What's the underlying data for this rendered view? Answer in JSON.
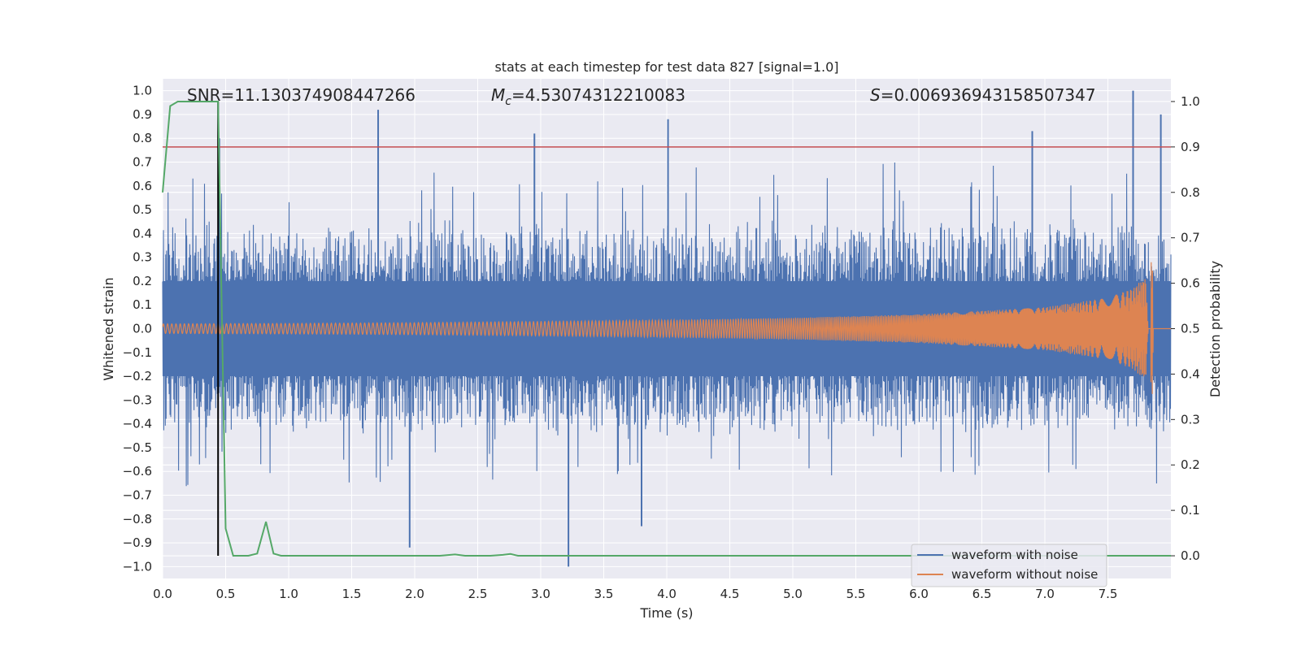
{
  "chart_data": {
    "type": "line",
    "title": "stats at each timestep for test data 827 [signal=1.0]",
    "xlabel": "Time (s)",
    "ylabel_left": "Whitened strain",
    "ylabel_right": "Detection probability",
    "xlim": [
      0.0,
      8.0
    ],
    "ylim_left": [
      -1.05,
      1.05
    ],
    "ylim_right": [
      -0.05,
      1.05
    ],
    "x_ticks": [
      "0.0",
      "0.5",
      "1.0",
      "1.5",
      "2.0",
      "2.5",
      "3.0",
      "3.5",
      "4.0",
      "4.5",
      "5.0",
      "5.5",
      "6.0",
      "6.5",
      "7.0",
      "7.5"
    ],
    "y_ticks_left": [
      "1.0",
      "0.9",
      "0.8",
      "0.7",
      "0.6",
      "0.5",
      "0.4",
      "0.3",
      "0.2",
      "0.1",
      "0.0",
      "−0.1",
      "−0.2",
      "−0.3",
      "−0.4",
      "−0.5",
      "−0.6",
      "−0.7",
      "−0.8",
      "−0.9",
      "−1.0"
    ],
    "y_ticks_right": [
      "1.0",
      "0.9",
      "0.8",
      "0.7",
      "0.6",
      "0.5",
      "0.4",
      "0.3",
      "0.2",
      "0.1",
      "0.0"
    ],
    "annotations": {
      "snr": "SNR=11.130374908447266",
      "mc_symbol": "M",
      "mc_sub": "c",
      "mc_value": "=4.53074312210083",
      "s_symbol": "S",
      "s_value": "=0.006936943158507347"
    },
    "threshold": {
      "axis": "right",
      "value": 0.9,
      "color": "#c44e52"
    },
    "vertical_marker": {
      "x": 0.44,
      "color": "#000000"
    },
    "series": [
      {
        "name": "waveform with noise",
        "axis": "left",
        "color": "#4c72b0",
        "typical_amplitude": 0.45,
        "peaks": [
          [
            0.45,
            0.8
          ],
          [
            1.71,
            0.92
          ],
          [
            2.95,
            0.82
          ],
          [
            4.01,
            0.88
          ],
          [
            6.9,
            0.83
          ],
          [
            7.7,
            1.0
          ],
          [
            7.92,
            0.9
          ],
          [
            3.22,
            -1.0
          ],
          [
            1.96,
            -0.92
          ],
          [
            3.8,
            -0.83
          ]
        ]
      },
      {
        "name": "waveform without noise",
        "axis": "left",
        "color": "#dd8452",
        "envelope_t": [
          0.0,
          1.0,
          2.0,
          3.0,
          4.0,
          5.0,
          6.0,
          7.0,
          7.5,
          7.7,
          7.8,
          7.82,
          8.0
        ],
        "envelope_a": [
          0.02,
          0.022,
          0.025,
          0.03,
          0.036,
          0.045,
          0.06,
          0.09,
          0.13,
          0.17,
          0.22,
          0.0,
          0.0
        ]
      },
      {
        "name": "detection probability",
        "axis": "right",
        "color": "#55a868",
        "x": [
          0.0,
          0.06,
          0.12,
          0.2,
          0.3,
          0.38,
          0.44,
          0.5,
          0.56,
          0.62,
          0.68,
          0.75,
          0.82,
          0.88,
          0.94,
          1.0,
          1.5,
          2.0,
          2.2,
          2.32,
          2.4,
          2.5,
          2.6,
          2.7,
          2.76,
          2.82,
          2.9,
          3.5,
          4.0,
          5.0,
          6.0,
          7.0,
          7.5,
          8.0
        ],
        "y": [
          0.8,
          0.99,
          1.0,
          1.0,
          1.0,
          1.0,
          1.0,
          0.06,
          0.0,
          0.0,
          0.0,
          0.005,
          0.075,
          0.005,
          0.0,
          0.0,
          0.0,
          0.0,
          0.0,
          0.003,
          0.0,
          0.0,
          0.0,
          0.002,
          0.004,
          0.0,
          0.0,
          0.0,
          0.0,
          0.0,
          0.0,
          0.0,
          0.0,
          0.0
        ]
      }
    ],
    "legend": {
      "placement": "lower-right",
      "entries": [
        "waveform with noise",
        "waveform without noise"
      ]
    },
    "grid": true,
    "background": "#eaeaf2"
  }
}
